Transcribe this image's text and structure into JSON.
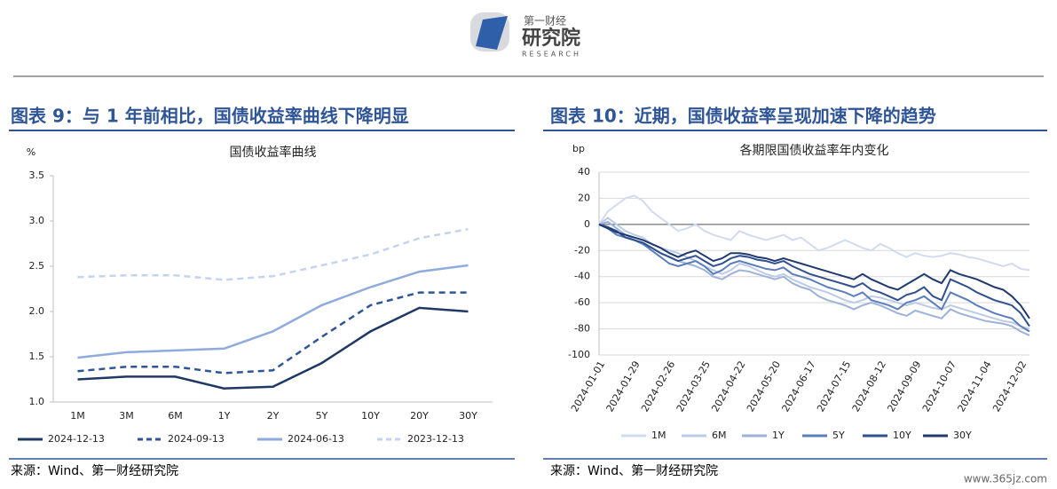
{
  "header": {
    "brand": "第一财经",
    "name": "研究院",
    "english": "RESEARCH"
  },
  "panels": [
    {
      "heading": "图表 9：与 1 年前相比，国债收益率曲线下降明显",
      "source": "来源：Wind、第一财经研究院"
    },
    {
      "heading": "图表 10：近期，国债收益率呈现加速下降的趋势",
      "source": "来源：Wind、第一财经研究院"
    }
  ],
  "watermark": "www.365jz.com",
  "chart_data": [
    {
      "type": "line",
      "title": "国债收益率曲线",
      "y_label": "%",
      "categories": [
        "1M",
        "3M",
        "6M",
        "1Y",
        "2Y",
        "5Y",
        "10Y",
        "20Y",
        "30Y"
      ],
      "ylim": [
        1.0,
        3.5
      ],
      "yticks": [
        {
          "value": 1.0,
          "label": "1.0"
        },
        1.5,
        {
          "value": 2.0,
          "label": "2.0"
        },
        2.5,
        {
          "value": 3.0,
          "label": "3.0"
        },
        3.5
      ],
      "legend": "bottom",
      "series": [
        {
          "name": "2024-12-13",
          "color": "#203864",
          "dash": false,
          "values": [
            1.25,
            1.28,
            1.28,
            1.15,
            1.17,
            1.43,
            1.78,
            2.04,
            2.0
          ]
        },
        {
          "name": "2024-09-13",
          "color": "#2f5597",
          "dash": true,
          "values": [
            1.34,
            1.39,
            1.39,
            1.32,
            1.35,
            1.72,
            2.07,
            2.21,
            2.21
          ]
        },
        {
          "name": "2024-06-13",
          "color": "#8faadc",
          "dash": false,
          "values": [
            1.49,
            1.55,
            1.57,
            1.59,
            1.78,
            2.07,
            2.27,
            2.44,
            2.51
          ]
        },
        {
          "name": "2023-12-13",
          "color": "#c5d3ec",
          "dash": true,
          "values": [
            2.38,
            2.4,
            2.4,
            2.35,
            2.39,
            2.51,
            2.63,
            2.81,
            2.91
          ]
        }
      ]
    },
    {
      "type": "line",
      "title": "各期限国债收益率年内变化",
      "y_label": "bp",
      "x": [
        "2024-01-01",
        "2024-01-08",
        "2024-01-15",
        "2024-01-22",
        "2024-01-29",
        "2024-02-05",
        "2024-02-12",
        "2024-02-19",
        "2024-02-26",
        "2024-03-04",
        "2024-03-11",
        "2024-03-18",
        "2024-03-25",
        "2024-04-01",
        "2024-04-08",
        "2024-04-15",
        "2024-04-22",
        "2024-04-29",
        "2024-05-06",
        "2024-05-13",
        "2024-05-20",
        "2024-05-27",
        "2024-06-03",
        "2024-06-10",
        "2024-06-17",
        "2024-06-24",
        "2024-07-01",
        "2024-07-08",
        "2024-07-15",
        "2024-07-22",
        "2024-07-29",
        "2024-08-05",
        "2024-08-12",
        "2024-08-19",
        "2024-08-26",
        "2024-09-02",
        "2024-09-09",
        "2024-09-16",
        "2024-09-23",
        "2024-09-30",
        "2024-10-07",
        "2024-10-14",
        "2024-10-21",
        "2024-10-28",
        "2024-11-04",
        "2024-11-11",
        "2024-11-18",
        "2024-11-25",
        "2024-12-02",
        "2024-12-09"
      ],
      "xticks": [
        "2024-01-01",
        "2024-01-29",
        "2024-02-26",
        "2024-03-25",
        "2024-04-22",
        "2024-05-20",
        "2024-06-17",
        "2024-07-15",
        "2024-08-12",
        "2024-09-09",
        "2024-10-07",
        "2024-11-04",
        "2024-12-02"
      ],
      "ylim": [
        -100,
        40
      ],
      "yticks": [
        -100,
        -80,
        -60,
        -40,
        -20,
        0,
        20,
        40
      ],
      "grid": true,
      "legend": "bottom",
      "series": [
        {
          "name": "1M",
          "color": "#d2dbee",
          "values": [
            0,
            10,
            15,
            20,
            22,
            18,
            10,
            5,
            0,
            -5,
            -3,
            0,
            -5,
            -8,
            -10,
            -12,
            -5,
            -8,
            -10,
            -12,
            -10,
            -8,
            -12,
            -10,
            -15,
            -20,
            -18,
            -15,
            -12,
            -15,
            -18,
            -20,
            -15,
            -18,
            -22,
            -25,
            -22,
            -24,
            -25,
            -24,
            -22,
            -23,
            -25,
            -26,
            -28,
            -30,
            -32,
            -30,
            -34,
            -35
          ]
        },
        {
          "name": "6M",
          "color": "#bccbe6",
          "values": [
            0,
            5,
            0,
            -5,
            -8,
            -10,
            -15,
            -18,
            -20,
            -22,
            -25,
            -28,
            -32,
            -35,
            -38,
            -35,
            -30,
            -32,
            -35,
            -38,
            -40,
            -38,
            -42,
            -45,
            -48,
            -50,
            -52,
            -55,
            -58,
            -60,
            -58,
            -55,
            -56,
            -58,
            -60,
            -62,
            -60,
            -62,
            -64,
            -65,
            -62,
            -64,
            -66,
            -68,
            -70,
            -72,
            -74,
            -75,
            -78,
            -80
          ]
        },
        {
          "name": "1Y",
          "color": "#9db1d9",
          "values": [
            0,
            2,
            -3,
            -8,
            -12,
            -15,
            -18,
            -22,
            -25,
            -28,
            -30,
            -32,
            -35,
            -40,
            -42,
            -38,
            -35,
            -36,
            -38,
            -40,
            -42,
            -40,
            -45,
            -48,
            -50,
            -55,
            -58,
            -60,
            -62,
            -65,
            -62,
            -60,
            -62,
            -65,
            -68,
            -70,
            -66,
            -68,
            -70,
            -72,
            -65,
            -68,
            -70,
            -72,
            -74,
            -75,
            -76,
            -78,
            -82,
            -85
          ]
        },
        {
          "name": "5Y",
          "color": "#5a7dbd",
          "values": [
            0,
            -3,
            -8,
            -10,
            -12,
            -15,
            -20,
            -25,
            -30,
            -32,
            -30,
            -28,
            -32,
            -38,
            -35,
            -30,
            -28,
            -30,
            -32,
            -34,
            -35,
            -33,
            -38,
            -40,
            -42,
            -45,
            -48,
            -50,
            -52,
            -55,
            -52,
            -58,
            -60,
            -62,
            -65,
            -60,
            -58,
            -55,
            -60,
            -65,
            -52,
            -55,
            -58,
            -62,
            -65,
            -68,
            -70,
            -72,
            -78,
            -82
          ]
        },
        {
          "name": "10Y",
          "color": "#2f4f8f",
          "values": [
            0,
            -2,
            -5,
            -10,
            -12,
            -14,
            -18,
            -22,
            -25,
            -28,
            -26,
            -24,
            -28,
            -32,
            -30,
            -26,
            -24,
            -25,
            -27,
            -28,
            -30,
            -28,
            -32,
            -35,
            -38,
            -40,
            -42,
            -44,
            -46,
            -48,
            -45,
            -50,
            -52,
            -55,
            -58,
            -54,
            -52,
            -48,
            -55,
            -58,
            -42,
            -45,
            -48,
            -52,
            -55,
            -58,
            -60,
            -62,
            -68,
            -78
          ]
        },
        {
          "name": "30Y",
          "color": "#1f3a6e",
          "values": [
            0,
            -3,
            -6,
            -8,
            -10,
            -12,
            -15,
            -18,
            -22,
            -25,
            -22,
            -20,
            -24,
            -28,
            -26,
            -22,
            -22,
            -23,
            -25,
            -26,
            -28,
            -26,
            -28,
            -30,
            -32,
            -34,
            -36,
            -38,
            -40,
            -42,
            -38,
            -42,
            -45,
            -48,
            -50,
            -46,
            -42,
            -38,
            -42,
            -45,
            -35,
            -38,
            -40,
            -42,
            -45,
            -48,
            -50,
            -55,
            -62,
            -72
          ]
        }
      ]
    }
  ]
}
